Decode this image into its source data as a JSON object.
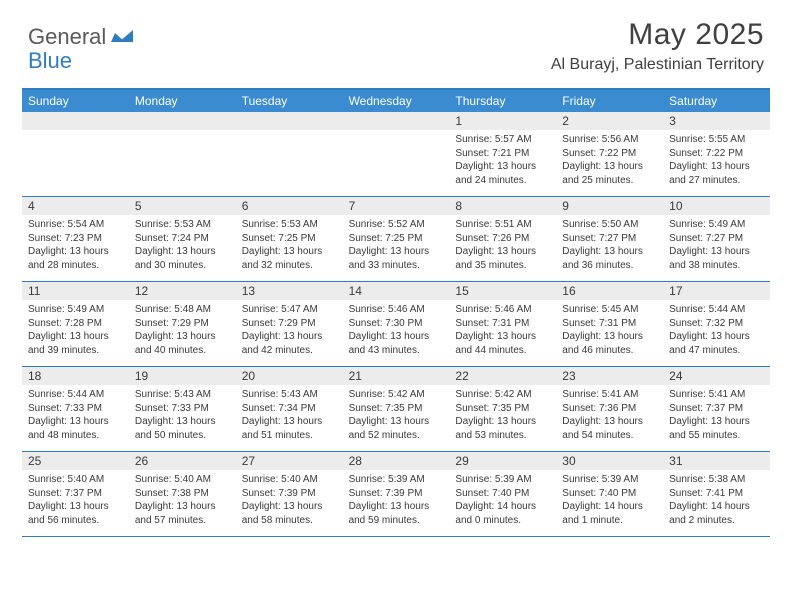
{
  "logo": {
    "general": "General",
    "blue": "Blue"
  },
  "colors": {
    "brand_blue": "#3b8bd0",
    "border_blue": "#2f7dc0",
    "numbar_bg": "#ececec",
    "text": "#3a3a3a",
    "logo_gray": "#5a5a5a"
  },
  "header": {
    "month_title": "May 2025",
    "location": "Al Burayj, Palestinian Territory"
  },
  "day_names": [
    "Sunday",
    "Monday",
    "Tuesday",
    "Wednesday",
    "Thursday",
    "Friday",
    "Saturday"
  ],
  "weeks": [
    [
      {
        "num": "",
        "sunrise": "",
        "sunset": "",
        "daylight": ""
      },
      {
        "num": "",
        "sunrise": "",
        "sunset": "",
        "daylight": ""
      },
      {
        "num": "",
        "sunrise": "",
        "sunset": "",
        "daylight": ""
      },
      {
        "num": "",
        "sunrise": "",
        "sunset": "",
        "daylight": ""
      },
      {
        "num": "1",
        "sunrise": "Sunrise: 5:57 AM",
        "sunset": "Sunset: 7:21 PM",
        "daylight": "Daylight: 13 hours and 24 minutes."
      },
      {
        "num": "2",
        "sunrise": "Sunrise: 5:56 AM",
        "sunset": "Sunset: 7:22 PM",
        "daylight": "Daylight: 13 hours and 25 minutes."
      },
      {
        "num": "3",
        "sunrise": "Sunrise: 5:55 AM",
        "sunset": "Sunset: 7:22 PM",
        "daylight": "Daylight: 13 hours and 27 minutes."
      }
    ],
    [
      {
        "num": "4",
        "sunrise": "Sunrise: 5:54 AM",
        "sunset": "Sunset: 7:23 PM",
        "daylight": "Daylight: 13 hours and 28 minutes."
      },
      {
        "num": "5",
        "sunrise": "Sunrise: 5:53 AM",
        "sunset": "Sunset: 7:24 PM",
        "daylight": "Daylight: 13 hours and 30 minutes."
      },
      {
        "num": "6",
        "sunrise": "Sunrise: 5:53 AM",
        "sunset": "Sunset: 7:25 PM",
        "daylight": "Daylight: 13 hours and 32 minutes."
      },
      {
        "num": "7",
        "sunrise": "Sunrise: 5:52 AM",
        "sunset": "Sunset: 7:25 PM",
        "daylight": "Daylight: 13 hours and 33 minutes."
      },
      {
        "num": "8",
        "sunrise": "Sunrise: 5:51 AM",
        "sunset": "Sunset: 7:26 PM",
        "daylight": "Daylight: 13 hours and 35 minutes."
      },
      {
        "num": "9",
        "sunrise": "Sunrise: 5:50 AM",
        "sunset": "Sunset: 7:27 PM",
        "daylight": "Daylight: 13 hours and 36 minutes."
      },
      {
        "num": "10",
        "sunrise": "Sunrise: 5:49 AM",
        "sunset": "Sunset: 7:27 PM",
        "daylight": "Daylight: 13 hours and 38 minutes."
      }
    ],
    [
      {
        "num": "11",
        "sunrise": "Sunrise: 5:49 AM",
        "sunset": "Sunset: 7:28 PM",
        "daylight": "Daylight: 13 hours and 39 minutes."
      },
      {
        "num": "12",
        "sunrise": "Sunrise: 5:48 AM",
        "sunset": "Sunset: 7:29 PM",
        "daylight": "Daylight: 13 hours and 40 minutes."
      },
      {
        "num": "13",
        "sunrise": "Sunrise: 5:47 AM",
        "sunset": "Sunset: 7:29 PM",
        "daylight": "Daylight: 13 hours and 42 minutes."
      },
      {
        "num": "14",
        "sunrise": "Sunrise: 5:46 AM",
        "sunset": "Sunset: 7:30 PM",
        "daylight": "Daylight: 13 hours and 43 minutes."
      },
      {
        "num": "15",
        "sunrise": "Sunrise: 5:46 AM",
        "sunset": "Sunset: 7:31 PM",
        "daylight": "Daylight: 13 hours and 44 minutes."
      },
      {
        "num": "16",
        "sunrise": "Sunrise: 5:45 AM",
        "sunset": "Sunset: 7:31 PM",
        "daylight": "Daylight: 13 hours and 46 minutes."
      },
      {
        "num": "17",
        "sunrise": "Sunrise: 5:44 AM",
        "sunset": "Sunset: 7:32 PM",
        "daylight": "Daylight: 13 hours and 47 minutes."
      }
    ],
    [
      {
        "num": "18",
        "sunrise": "Sunrise: 5:44 AM",
        "sunset": "Sunset: 7:33 PM",
        "daylight": "Daylight: 13 hours and 48 minutes."
      },
      {
        "num": "19",
        "sunrise": "Sunrise: 5:43 AM",
        "sunset": "Sunset: 7:33 PM",
        "daylight": "Daylight: 13 hours and 50 minutes."
      },
      {
        "num": "20",
        "sunrise": "Sunrise: 5:43 AM",
        "sunset": "Sunset: 7:34 PM",
        "daylight": "Daylight: 13 hours and 51 minutes."
      },
      {
        "num": "21",
        "sunrise": "Sunrise: 5:42 AM",
        "sunset": "Sunset: 7:35 PM",
        "daylight": "Daylight: 13 hours and 52 minutes."
      },
      {
        "num": "22",
        "sunrise": "Sunrise: 5:42 AM",
        "sunset": "Sunset: 7:35 PM",
        "daylight": "Daylight: 13 hours and 53 minutes."
      },
      {
        "num": "23",
        "sunrise": "Sunrise: 5:41 AM",
        "sunset": "Sunset: 7:36 PM",
        "daylight": "Daylight: 13 hours and 54 minutes."
      },
      {
        "num": "24",
        "sunrise": "Sunrise: 5:41 AM",
        "sunset": "Sunset: 7:37 PM",
        "daylight": "Daylight: 13 hours and 55 minutes."
      }
    ],
    [
      {
        "num": "25",
        "sunrise": "Sunrise: 5:40 AM",
        "sunset": "Sunset: 7:37 PM",
        "daylight": "Daylight: 13 hours and 56 minutes."
      },
      {
        "num": "26",
        "sunrise": "Sunrise: 5:40 AM",
        "sunset": "Sunset: 7:38 PM",
        "daylight": "Daylight: 13 hours and 57 minutes."
      },
      {
        "num": "27",
        "sunrise": "Sunrise: 5:40 AM",
        "sunset": "Sunset: 7:39 PM",
        "daylight": "Daylight: 13 hours and 58 minutes."
      },
      {
        "num": "28",
        "sunrise": "Sunrise: 5:39 AM",
        "sunset": "Sunset: 7:39 PM",
        "daylight": "Daylight: 13 hours and 59 minutes."
      },
      {
        "num": "29",
        "sunrise": "Sunrise: 5:39 AM",
        "sunset": "Sunset: 7:40 PM",
        "daylight": "Daylight: 14 hours and 0 minutes."
      },
      {
        "num": "30",
        "sunrise": "Sunrise: 5:39 AM",
        "sunset": "Sunset: 7:40 PM",
        "daylight": "Daylight: 14 hours and 1 minute."
      },
      {
        "num": "31",
        "sunrise": "Sunrise: 5:38 AM",
        "sunset": "Sunset: 7:41 PM",
        "daylight": "Daylight: 14 hours and 2 minutes."
      }
    ]
  ]
}
